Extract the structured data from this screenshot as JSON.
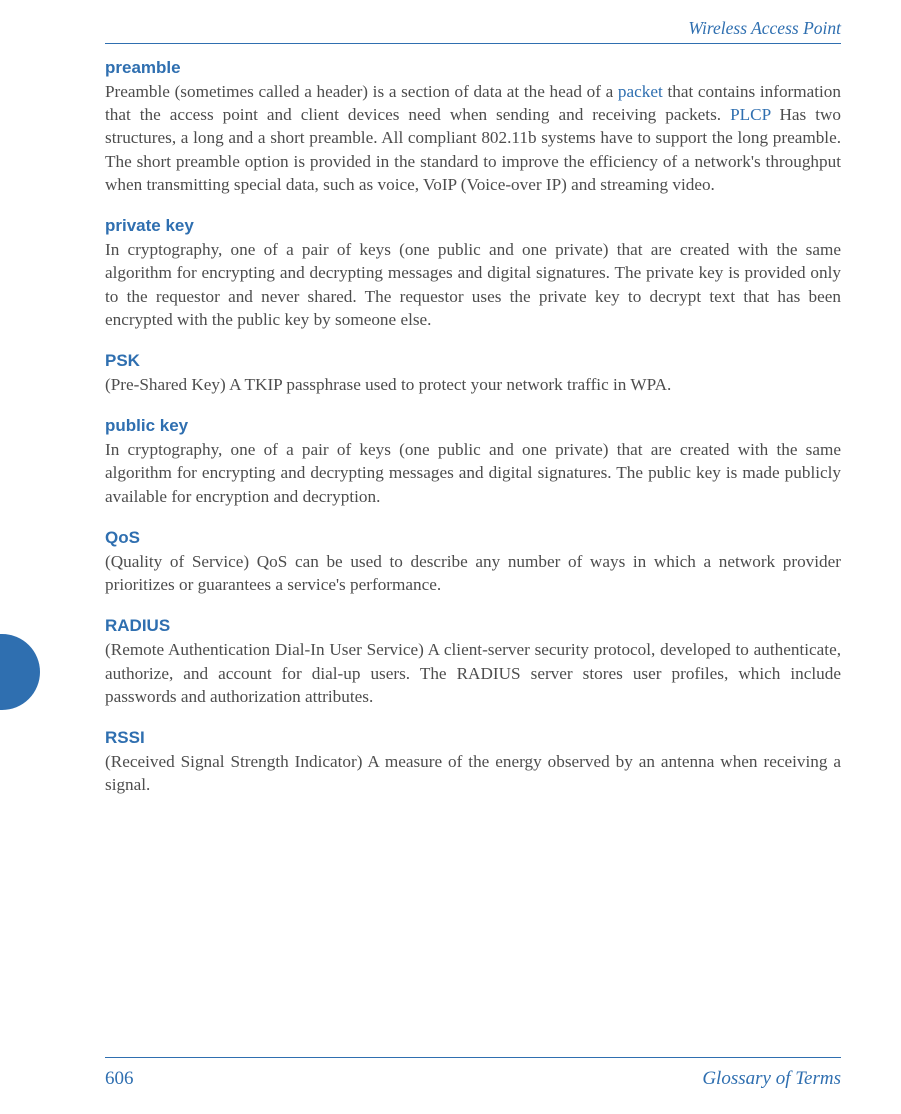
{
  "colors": {
    "accent": "#2f6fb0",
    "body_text": "#4d4d4d",
    "background": "#ffffff"
  },
  "typography": {
    "body_font": "Palatino Linotype, serif",
    "body_size_pt": 13,
    "heading_font": "Arial, sans-serif",
    "heading_size_pt": 13,
    "heading_weight": "bold",
    "footer_script_font": "cursive"
  },
  "header": {
    "title": "Wireless Access Point"
  },
  "entries": [
    {
      "term": "preamble",
      "body_parts": [
        {
          "text": "Preamble (sometimes called a header) is a section of data at the head of a "
        },
        {
          "text": "packet",
          "link": true
        },
        {
          "text": " that contains information that the access point and client devices need when sending and receiving packets. "
        },
        {
          "text": "PLCP",
          "link": true
        },
        {
          "text": " Has two structures, a long and a short preamble. All compliant 802.11b systems have to support the long preamble. The short preamble option is provided in the standard to improve the efficiency of a network's throughput when transmitting special data, such as voice, VoIP (Voice-over IP) and streaming video."
        }
      ]
    },
    {
      "term": "private key",
      "body_parts": [
        {
          "text": "In cryptography, one of a pair of keys (one public and one private) that are created with the same algorithm for encrypting and decrypting messages and digital signatures. The private key is provided only to the requestor and never shared. The requestor uses the private key to decrypt text that has been encrypted with the public key by someone else."
        }
      ]
    },
    {
      "term": "PSK",
      "body_parts": [
        {
          "text": "(Pre-Shared Key) A TKIP passphrase used to protect your network traffic in WPA."
        }
      ]
    },
    {
      "term": "public key",
      "body_parts": [
        {
          "text": "In cryptography, one of a pair of keys (one public and one private) that are created with the same algorithm for encrypting and decrypting messages and digital signatures. The public key is made publicly available for encryption and decryption."
        }
      ]
    },
    {
      "term": "QoS",
      "body_parts": [
        {
          "text": "(Quality of Service) QoS can be used to describe any number of ways in which a network provider prioritizes or guarantees a service's performance."
        }
      ]
    },
    {
      "term": "RADIUS",
      "body_parts": [
        {
          "text": "(Remote Authentication Dial-In User Service) A client-server security protocol, developed to authenticate, authorize, and account for dial-up users. The RADIUS server stores user profiles, which include passwords and authorization attributes."
        }
      ]
    },
    {
      "term": "RSSI",
      "body_parts": [
        {
          "text": "(Received Signal Strength Indicator) A measure of the energy observed by an antenna when receiving a signal."
        }
      ]
    }
  ],
  "footer": {
    "page_number": "606",
    "section": "Glossary of Terms"
  }
}
